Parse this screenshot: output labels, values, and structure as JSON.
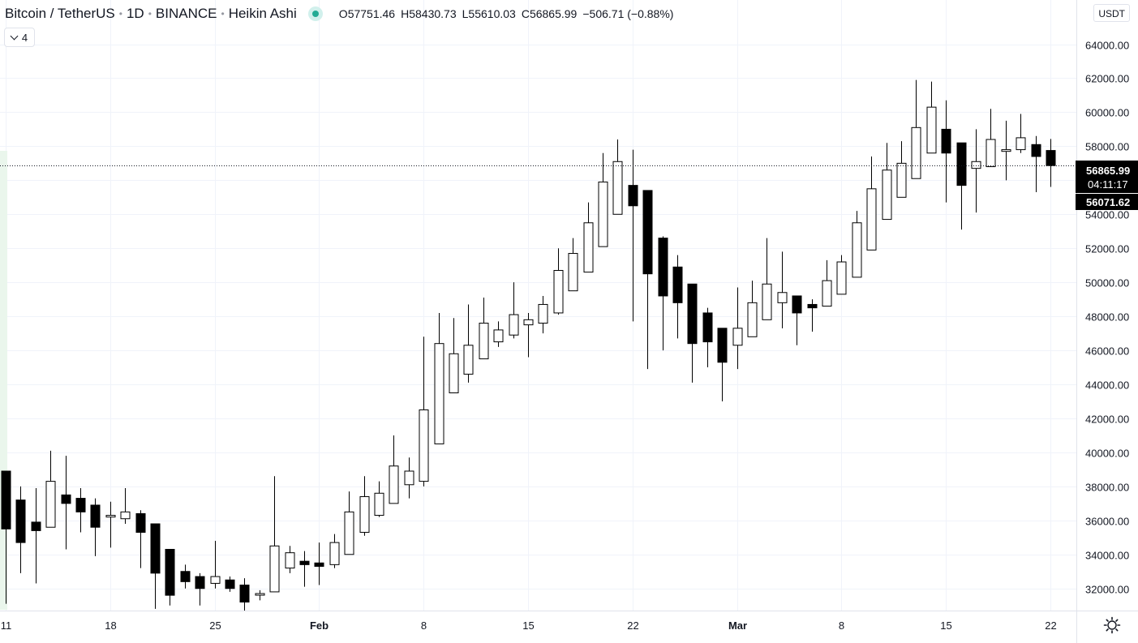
{
  "legend": {
    "symbol": "Bitcoin / TetherUS",
    "interval": "1D",
    "exchange": "BINANCE",
    "chart_style": "Heikin Ashi",
    "open_label": "O",
    "open": "57751.46",
    "high_label": "H",
    "high": "58430.73",
    "low_label": "L",
    "low": "55610.03",
    "close_label": "C",
    "close": "56865.99",
    "change": "−506.71 (−0.88%)",
    "status_color": "#22ab94"
  },
  "indicators_toggle": {
    "count": "4",
    "icon": "chevron-down-icon"
  },
  "currency": "USDT",
  "price_scale": {
    "top_partial_label": "6",
    "current_price": "56865.99",
    "countdown": "04:11:17",
    "secondary_price": "56071.62"
  },
  "settings_icon": "gear-icon",
  "colors": {
    "up_body": "#ffffff",
    "down_body": "#000000",
    "wick": "#000000",
    "grid": "#f0f3fa",
    "text": "#131722"
  },
  "chart_data": {
    "type": "candlestick",
    "style": "Heikin Ashi",
    "title": "Bitcoin / TetherUS",
    "xlabel": "",
    "ylabel": "",
    "ylim": [
      30700,
      66600
    ],
    "grid": true,
    "y_ticks": [
      32000,
      34000,
      36000,
      38000,
      40000,
      42000,
      44000,
      46000,
      48000,
      50000,
      52000,
      54000,
      56000,
      58000,
      60000,
      62000,
      64000
    ],
    "y_tick_labels": [
      "32000.00",
      "34000.00",
      "36000.00",
      "38000.00",
      "40000.00",
      "42000.00",
      "44000.00",
      "46000.00",
      "48000.00",
      "50000.00",
      "52000.00",
      "54000.00",
      "56000.00",
      "58000.00",
      "60000.00",
      "62000.00",
      "64000.00"
    ],
    "x_ticks": [
      {
        "label": "11",
        "index": 0
      },
      {
        "label": "18",
        "index": 7
      },
      {
        "label": "25",
        "index": 14
      },
      {
        "label": "Feb",
        "index": 21
      },
      {
        "label": "8",
        "index": 28
      },
      {
        "label": "15",
        "index": 35
      },
      {
        "label": "22",
        "index": 42
      },
      {
        "label": "Mar",
        "index": 49
      },
      {
        "label": "8",
        "index": 56
      },
      {
        "label": "15",
        "index": 63
      },
      {
        "label": "22",
        "index": 70
      }
    ],
    "current_price_line": 56865.99,
    "candles": [
      {
        "o": 38900,
        "h": 38900,
        "l": 31100,
        "c": 35500
      },
      {
        "o": 37200,
        "h": 38000,
        "l": 32900,
        "c": 34700
      },
      {
        "o": 35900,
        "h": 37900,
        "l": 32300,
        "c": 35400
      },
      {
        "o": 35600,
        "h": 40100,
        "l": 35600,
        "c": 38300
      },
      {
        "o": 37500,
        "h": 39800,
        "l": 34300,
        "c": 37000
      },
      {
        "o": 37300,
        "h": 37900,
        "l": 35300,
        "c": 36500
      },
      {
        "o": 36900,
        "h": 37300,
        "l": 33900,
        "c": 35600
      },
      {
        "o": 36200,
        "h": 37100,
        "l": 34400,
        "c": 36300
      },
      {
        "o": 36100,
        "h": 37900,
        "l": 35800,
        "c": 36500
      },
      {
        "o": 36400,
        "h": 36600,
        "l": 33200,
        "c": 35300
      },
      {
        "o": 35800,
        "h": 35800,
        "l": 30800,
        "c": 32900
      },
      {
        "o": 34300,
        "h": 34300,
        "l": 31000,
        "c": 31600
      },
      {
        "o": 33000,
        "h": 33400,
        "l": 32000,
        "c": 32400
      },
      {
        "o": 32700,
        "h": 32900,
        "l": 31000,
        "c": 32000
      },
      {
        "o": 32300,
        "h": 34800,
        "l": 32000,
        "c": 32700
      },
      {
        "o": 32500,
        "h": 32700,
        "l": 31800,
        "c": 32000
      },
      {
        "o": 32200,
        "h": 32600,
        "l": 30700,
        "c": 31200
      },
      {
        "o": 31700,
        "h": 31900,
        "l": 31300,
        "c": 31700
      },
      {
        "o": 31800,
        "h": 38600,
        "l": 31800,
        "c": 34500
      },
      {
        "o": 33200,
        "h": 34500,
        "l": 32900,
        "c": 34100
      },
      {
        "o": 33600,
        "h": 34200,
        "l": 32100,
        "c": 33400
      },
      {
        "o": 33500,
        "h": 34700,
        "l": 32200,
        "c": 33300
      },
      {
        "o": 33400,
        "h": 35200,
        "l": 33200,
        "c": 34700
      },
      {
        "o": 34000,
        "h": 37700,
        "l": 34000,
        "c": 36500
      },
      {
        "o": 35300,
        "h": 38600,
        "l": 35100,
        "c": 37400
      },
      {
        "o": 36300,
        "h": 38300,
        "l": 36200,
        "c": 37600
      },
      {
        "o": 37000,
        "h": 41000,
        "l": 37000,
        "c": 39200
      },
      {
        "o": 38100,
        "h": 39700,
        "l": 37300,
        "c": 38900
      },
      {
        "o": 38300,
        "h": 46800,
        "l": 38000,
        "c": 42500
      },
      {
        "o": 40500,
        "h": 48200,
        "l": 40500,
        "c": 46400
      },
      {
        "o": 43500,
        "h": 47900,
        "l": 43500,
        "c": 45800
      },
      {
        "o": 44600,
        "h": 48700,
        "l": 44100,
        "c": 46300
      },
      {
        "o": 45500,
        "h": 49100,
        "l": 45500,
        "c": 47600
      },
      {
        "o": 46500,
        "h": 47700,
        "l": 46200,
        "c": 47200
      },
      {
        "o": 46900,
        "h": 50000,
        "l": 46700,
        "c": 48100
      },
      {
        "o": 47500,
        "h": 48200,
        "l": 45600,
        "c": 47800
      },
      {
        "o": 47600,
        "h": 49200,
        "l": 47000,
        "c": 48700
      },
      {
        "o": 48200,
        "h": 52000,
        "l": 48100,
        "c": 50700
      },
      {
        "o": 49500,
        "h": 52600,
        "l": 49500,
        "c": 51700
      },
      {
        "o": 50600,
        "h": 54700,
        "l": 50600,
        "c": 53500
      },
      {
        "o": 52100,
        "h": 57600,
        "l": 52100,
        "c": 55900
      },
      {
        "o": 54000,
        "h": 58400,
        "l": 54000,
        "c": 57100
      },
      {
        "o": 55700,
        "h": 57800,
        "l": 47700,
        "c": 54500
      },
      {
        "o": 55400,
        "h": 55400,
        "l": 44900,
        "c": 50500
      },
      {
        "o": 52600,
        "h": 52700,
        "l": 46000,
        "c": 49200
      },
      {
        "o": 50900,
        "h": 51600,
        "l": 46700,
        "c": 48800
      },
      {
        "o": 49900,
        "h": 49900,
        "l": 44100,
        "c": 46400
      },
      {
        "o": 48200,
        "h": 48500,
        "l": 45000,
        "c": 46500
      },
      {
        "o": 47300,
        "h": 47300,
        "l": 43000,
        "c": 45300
      },
      {
        "o": 46300,
        "h": 49700,
        "l": 44900,
        "c": 47300
      },
      {
        "o": 46800,
        "h": 50100,
        "l": 46800,
        "c": 48800
      },
      {
        "o": 47800,
        "h": 52600,
        "l": 47800,
        "c": 49900
      },
      {
        "o": 48800,
        "h": 51800,
        "l": 47300,
        "c": 49400
      },
      {
        "o": 49200,
        "h": 49200,
        "l": 46300,
        "c": 48200
      },
      {
        "o": 48700,
        "h": 49000,
        "l": 47100,
        "c": 48500
      },
      {
        "o": 48600,
        "h": 51300,
        "l": 48600,
        "c": 50100
      },
      {
        "o": 49300,
        "h": 51600,
        "l": 49300,
        "c": 51200
      },
      {
        "o": 50300,
        "h": 54200,
        "l": 50300,
        "c": 53500
      },
      {
        "o": 51900,
        "h": 57400,
        "l": 51900,
        "c": 55500
      },
      {
        "o": 53700,
        "h": 58200,
        "l": 53700,
        "c": 56600
      },
      {
        "o": 55000,
        "h": 58300,
        "l": 55000,
        "c": 57000
      },
      {
        "o": 56100,
        "h": 61900,
        "l": 56100,
        "c": 59100
      },
      {
        "o": 57600,
        "h": 61800,
        "l": 57600,
        "c": 60300
      },
      {
        "o": 59000,
        "h": 60700,
        "l": 54700,
        "c": 57600
      },
      {
        "o": 58200,
        "h": 58200,
        "l": 53100,
        "c": 55700
      },
      {
        "o": 56700,
        "h": 59000,
        "l": 54100,
        "c": 57100
      },
      {
        "o": 56800,
        "h": 60200,
        "l": 56800,
        "c": 58400
      },
      {
        "o": 57700,
        "h": 59500,
        "l": 56000,
        "c": 57800
      },
      {
        "o": 57800,
        "h": 59900,
        "l": 57600,
        "c": 58500
      },
      {
        "o": 58100,
        "h": 58600,
        "l": 55300,
        "c": 57400
      },
      {
        "o": 57751.46,
        "h": 58430.73,
        "l": 55610.03,
        "c": 56865.99
      }
    ]
  }
}
